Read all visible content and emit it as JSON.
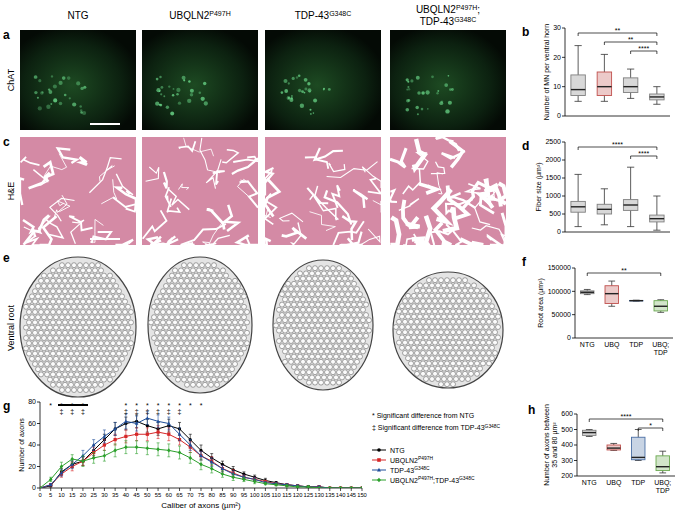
{
  "figure": {
    "column_titles": [
      [
        "NTG"
      ],
      [
        "UBQLN2P497H"
      ],
      [
        "TDP-43G348C"
      ],
      [
        "UBQLN2P497H;",
        "TDP-43G348C"
      ]
    ],
    "rows": [
      {
        "letter": "a",
        "label": "ChAT"
      },
      {
        "letter": "c",
        "label": "H&E"
      },
      {
        "letter": "e",
        "label": "Ventral root"
      }
    ]
  },
  "chart_data": [
    {
      "type": "box",
      "panel": "b",
      "y_label": "Number of MN per ventral horn",
      "categories": [
        null,
        null,
        null,
        null
      ],
      "boxes": [
        {
          "min": 5,
          "q1": 7,
          "median": 9,
          "q3": 14,
          "max": 24
        },
        {
          "min": 5,
          "q1": 7,
          "median": 10,
          "q3": 15,
          "max": 21
        },
        {
          "min": 6,
          "q1": 8,
          "median": 10,
          "q3": 13,
          "max": 16
        },
        {
          "min": 4,
          "q1": 5.5,
          "median": 6.5,
          "q3": 7.5,
          "max": 10
        }
      ],
      "colors": [
        "#7f7f7f",
        "#c0504d",
        "#7f7f7f",
        "#7f7f7f"
      ],
      "ylim": [
        0,
        30
      ],
      "yticks": [
        0,
        10,
        20,
        30
      ],
      "brackets": [
        {
          "from": 0,
          "to": 3,
          "label": "**"
        },
        {
          "from": 1,
          "to": 3,
          "label": "**"
        },
        {
          "from": 2,
          "to": 3,
          "label": "****"
        }
      ]
    },
    {
      "type": "box",
      "panel": "d",
      "y_label": "Fiber size (µm²)",
      "categories": [
        null,
        null,
        null,
        null
      ],
      "boxes": [
        {
          "min": 150,
          "q1": 550,
          "median": 700,
          "q3": 850,
          "max": 1600
        },
        {
          "min": 200,
          "q1": 500,
          "median": 630,
          "q3": 770,
          "max": 1200
        },
        {
          "min": 150,
          "q1": 600,
          "median": 750,
          "q3": 900,
          "max": 1800
        },
        {
          "min": 50,
          "q1": 280,
          "median": 370,
          "q3": 470,
          "max": 1000
        }
      ],
      "colors": [
        "#7f7f7f",
        "#7f7f7f",
        "#7f7f7f",
        "#7f7f7f"
      ],
      "ylim": [
        0,
        2500
      ],
      "yticks": [
        0,
        500,
        1000,
        1500,
        2000,
        2500
      ],
      "brackets": [
        {
          "from": 0,
          "to": 3,
          "label": "****"
        },
        {
          "from": 2,
          "to": 3,
          "label": "****"
        }
      ]
    },
    {
      "type": "box",
      "panel": "f",
      "y_label": "Root area (µm²)",
      "categories": [
        "NTG",
        "UBQ",
        "TDP",
        "UBQ;\nTDP"
      ],
      "boxes": [
        {
          "min": 93000,
          "q1": 95000,
          "median": 98000,
          "q3": 101000,
          "max": 104000
        },
        {
          "min": 68000,
          "q1": 74000,
          "median": 95000,
          "q3": 112000,
          "max": 122000
        },
        {
          "min": 79000,
          "q1": 79500,
          "median": 80000,
          "q3": 80500,
          "max": 81000
        },
        {
          "min": 55000,
          "q1": 58000,
          "median": 68000,
          "q3": 80000,
          "max": 82000
        }
      ],
      "colors": [
        "#7f7f7f",
        "#c0504d",
        "#4a6fa5",
        "#6aa84f"
      ],
      "ylim": [
        0,
        150000
      ],
      "yticks": [
        0,
        50000,
        100000,
        150000
      ],
      "brackets": [
        {
          "from": 0,
          "to": 3,
          "label": "**"
        }
      ]
    },
    {
      "type": "line",
      "panel": "g",
      "x_label": "Caliber of axons (µm²)",
      "y_label": "Number of axons",
      "x": [
        0,
        5,
        10,
        15,
        20,
        25,
        30,
        35,
        40,
        45,
        50,
        55,
        60,
        65,
        70,
        75,
        80,
        85,
        90,
        95,
        100,
        105,
        110,
        115,
        120,
        125,
        130,
        135,
        140,
        145,
        150
      ],
      "series": [
        {
          "name": "NTG",
          "color": "#000000",
          "marker": "circle",
          "values": [
            0,
            2,
            15,
            22,
            25,
            35,
            45,
            55,
            60,
            62,
            58,
            55,
            58,
            55,
            45,
            35,
            28,
            22,
            17,
            13,
            10,
            7,
            5,
            3,
            2,
            1,
            1,
            0,
            0,
            0,
            0
          ],
          "errors": [
            0,
            1,
            3,
            3,
            4,
            5,
            5,
            6,
            6,
            6,
            6,
            6,
            6,
            6,
            5,
            5,
            4,
            3,
            3,
            2,
            2,
            2,
            1,
            1,
            1,
            1,
            1,
            0,
            0,
            0,
            0
          ]
        },
        {
          "name": "UBQLN2P497H",
          "color": "#d62728",
          "marker": "square",
          "values": [
            0,
            3,
            13,
            20,
            25,
            33,
            40,
            45,
            48,
            50,
            50,
            52,
            50,
            45,
            38,
            30,
            25,
            18,
            14,
            10,
            8,
            6,
            4,
            3,
            2,
            1,
            1,
            0,
            0,
            0,
            0
          ],
          "errors": [
            0,
            1,
            3,
            4,
            4,
            5,
            5,
            5,
            6,
            6,
            6,
            6,
            6,
            5,
            5,
            4,
            4,
            3,
            3,
            2,
            2,
            1,
            1,
            1,
            1,
            1,
            1,
            0,
            0,
            0,
            0
          ]
        },
        {
          "name": "TDP-43G348C",
          "color": "#1f4e9a",
          "marker": "triangle",
          "values": [
            0,
            3,
            14,
            22,
            30,
            40,
            48,
            55,
            62,
            60,
            65,
            62,
            60,
            50,
            40,
            30,
            24,
            18,
            13,
            10,
            8,
            5,
            4,
            3,
            2,
            1,
            1,
            0,
            0,
            0,
            0
          ],
          "errors": [
            0,
            1,
            3,
            4,
            5,
            5,
            6,
            6,
            7,
            7,
            6,
            6,
            6,
            6,
            5,
            4,
            4,
            3,
            3,
            2,
            2,
            1,
            1,
            1,
            1,
            1,
            1,
            0,
            0,
            0,
            0
          ]
        },
        {
          "name": "UBQLN2P497H;TDP-43G348C",
          "color": "#2ca02c",
          "marker": "diamond",
          "values": [
            0,
            8,
            20,
            27,
            25,
            28,
            30,
            35,
            38,
            38,
            37,
            36,
            35,
            33,
            28,
            22,
            18,
            13,
            10,
            8,
            6,
            4,
            3,
            2,
            1,
            1,
            0,
            0,
            0,
            0,
            0
          ],
          "errors": [
            0,
            2,
            4,
            4,
            5,
            5,
            5,
            6,
            6,
            6,
            6,
            6,
            6,
            6,
            5,
            5,
            4,
            3,
            3,
            2,
            2,
            1,
            1,
            1,
            1,
            1,
            0,
            0,
            0,
            0,
            0
          ]
        }
      ],
      "xlim": [
        0,
        150
      ],
      "xticks": [
        0,
        5,
        10,
        15,
        20,
        25,
        30,
        35,
        40,
        45,
        50,
        55,
        60,
        65,
        70,
        75,
        80,
        85,
        90,
        95,
        100,
        105,
        110,
        115,
        120,
        125,
        130,
        135,
        140,
        145,
        150
      ],
      "ylim": [
        0,
        80
      ],
      "yticks": [
        0,
        20,
        40,
        60,
        80
      ],
      "legend": "right",
      "notes": [
        "* Significant difference from NTG",
        "‡ Significant difference from TDP-43G348C"
      ],
      "annotations": [
        {
          "x": 5,
          "y": 77,
          "text": "*"
        },
        {
          "x": 10,
          "y": 77,
          "text": "*"
        },
        {
          "x": 15,
          "y": 77,
          "text": "*"
        },
        {
          "x": 20,
          "y": 77,
          "text": "*"
        },
        {
          "x": 40,
          "y": 77,
          "text": "*"
        },
        {
          "x": 45,
          "y": 77,
          "text": "*"
        },
        {
          "x": 50,
          "y": 77,
          "text": "*"
        },
        {
          "x": 55,
          "y": 77,
          "text": "*"
        },
        {
          "x": 60,
          "y": 77,
          "text": "*"
        },
        {
          "x": 65,
          "y": 77,
          "text": "*"
        },
        {
          "x": 70,
          "y": 77,
          "text": "*"
        },
        {
          "x": 75,
          "y": 77,
          "text": "*"
        },
        {
          "x": 10,
          "y": 72,
          "text": "‡"
        },
        {
          "x": 15,
          "y": 72,
          "text": "‡"
        },
        {
          "x": 20,
          "y": 72,
          "text": "‡"
        },
        {
          "x": 40,
          "y": 72,
          "text": "‡"
        },
        {
          "x": 45,
          "y": 72,
          "text": "‡"
        },
        {
          "x": 50,
          "y": 72,
          "text": "‡"
        },
        {
          "x": 55,
          "y": 72,
          "text": "‡"
        },
        {
          "x": 60,
          "y": 72,
          "text": "‡"
        },
        {
          "x": 65,
          "y": 72,
          "text": "‡"
        }
      ]
    },
    {
      "type": "box",
      "panel": "h",
      "y_label": "Number of axons between\n35 and 80 µm²",
      "categories": [
        "NTG",
        "UBQ",
        "TDP",
        "UBQ;\nTDP"
      ],
      "boxes": [
        {
          "min": 455,
          "q1": 462,
          "median": 480,
          "q3": 495,
          "max": 500
        },
        {
          "min": 365,
          "q1": 368,
          "median": 380,
          "q3": 400,
          "max": 410
        },
        {
          "min": 300,
          "q1": 305,
          "median": 320,
          "q3": 450,
          "max": 500
        },
        {
          "min": 220,
          "q1": 235,
          "median": 260,
          "q3": 330,
          "max": 360
        }
      ],
      "colors": [
        "#7f7f7f",
        "#c0504d",
        "#4a6fa5",
        "#6aa84f"
      ],
      "ylim": [
        200,
        600
      ],
      "yticks": [
        200,
        300,
        400,
        500,
        600
      ],
      "brackets": [
        {
          "from": 0,
          "to": 3,
          "label": "****"
        },
        {
          "from": 2,
          "to": 3,
          "label": "*"
        }
      ]
    }
  ]
}
